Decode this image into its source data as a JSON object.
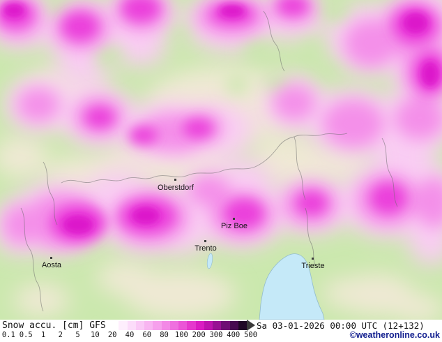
{
  "map": {
    "cities": [
      {
        "name": "Oberstdorf"
      },
      {
        "name": "Piz Boe"
      },
      {
        "name": "Trento"
      },
      {
        "name": "Aosta"
      },
      {
        "name": "Trieste"
      }
    ]
  },
  "legend": {
    "parameter": "Snow accu. [cm]",
    "model": "GFS",
    "ticks": [
      "0.1",
      "0.5",
      "1",
      "2",
      "5",
      "10",
      "20",
      "40",
      "60",
      "80",
      "100",
      "200",
      "300",
      "400",
      "500"
    ],
    "bar_colors": [
      "#ffffff",
      "#feeefd",
      "#fcdcfa",
      "#fac9f6",
      "#f8b5f1",
      "#f6a0ec",
      "#f389e6",
      "#ef70df",
      "#eb55d7",
      "#e538cd",
      "#da1cc2",
      "#bd13ae",
      "#971093",
      "#6e0e74",
      "#470b50",
      "#200826"
    ],
    "arrow_color": "#3a3a3a"
  },
  "footer": {
    "datetime": "Sa 03-01-2026 00:00 UTC (12+132)",
    "credit": "©weatheronline.co.uk"
  },
  "colors": {
    "land_green": "#cbe8ae",
    "land_beige": "#efe9d4",
    "sea_blue": "#c5e9f8",
    "snow_light": "#f9cdf3",
    "snow_medium": "#f490e9",
    "snow_deep": "#eb40db",
    "snow_max": "#dc12ca",
    "border_gray": "#6a6a6a",
    "credit_blue": "#101d8e"
  }
}
